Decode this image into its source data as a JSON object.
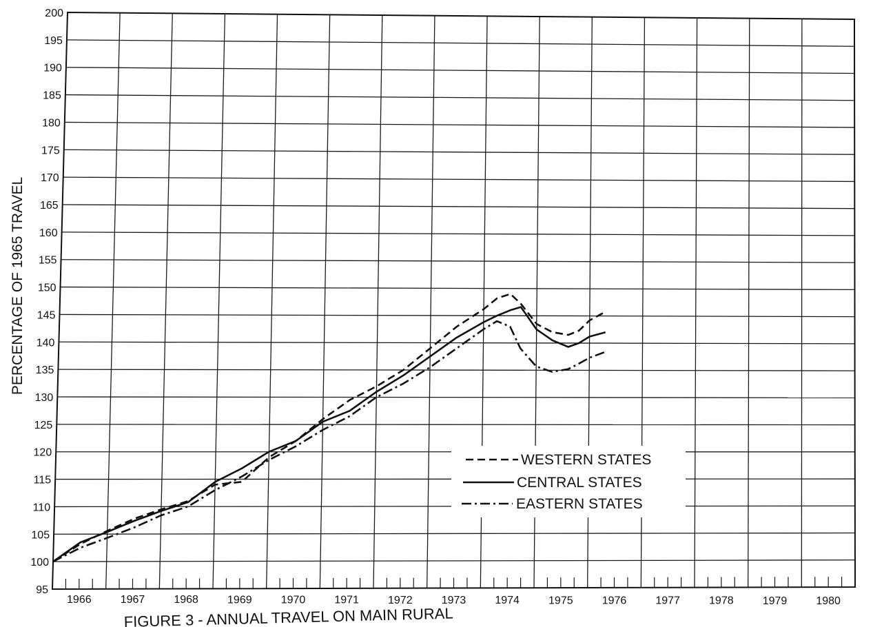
{
  "chart_data": {
    "type": "line",
    "title": "FIGURE 3 - ANNUAL TRAVEL ON MAIN RURAL",
    "xlabel": "",
    "ylabel": "PERCENTAGE OF 1965 TRAVEL",
    "ylim": [
      95,
      200
    ],
    "yticks": [
      "95",
      "100",
      "105",
      "110",
      "115",
      "120",
      "125",
      "130",
      "135",
      "140",
      "145",
      "150",
      "155",
      "160",
      "165",
      "170",
      "175",
      "180",
      "185",
      "190",
      "195",
      "200"
    ],
    "categories": [
      "1966",
      "1967",
      "1968",
      "1969",
      "1970",
      "1971",
      "1972",
      "1973",
      "1974",
      "1975",
      "1976",
      "1977",
      "1978",
      "1979",
      "1980"
    ],
    "grid": true,
    "legend_position": "center-right",
    "series": [
      {
        "name": "WESTERN STATES",
        "style": "dashed",
        "color": "#111111",
        "x": [
          1965.0,
          1965.5,
          1966.0,
          1966.5,
          1967.0,
          1967.5,
          1968.0,
          1968.5,
          1969.0,
          1969.5,
          1970.0,
          1970.5,
          1971.0,
          1971.5,
          1972.0,
          1972.5,
          1973.0,
          1973.25,
          1973.5,
          1973.7,
          1974.0,
          1974.3,
          1974.6,
          1974.8,
          1975.0,
          1975.3
        ],
        "values": [
          100,
          103.2,
          105.6,
          107.8,
          109.5,
          111,
          114,
          114.5,
          119,
          122,
          126,
          129.5,
          132,
          135,
          139,
          143,
          146.2,
          148.2,
          149,
          147.2,
          143.5,
          142,
          141.5,
          142.3,
          144.2,
          145.8
        ]
      },
      {
        "name": "CENTRAL STATES",
        "style": "solid",
        "color": "#111111",
        "x": [
          1965.0,
          1965.5,
          1966.0,
          1966.5,
          1967.0,
          1967.5,
          1968.0,
          1968.5,
          1969.0,
          1969.5,
          1970.0,
          1970.5,
          1971.0,
          1971.5,
          1972.0,
          1972.5,
          1973.0,
          1973.25,
          1973.5,
          1973.7,
          1974.0,
          1974.3,
          1974.6,
          1974.8,
          1975.0,
          1975.3
        ],
        "values": [
          100,
          103.5,
          105.4,
          107.4,
          109.2,
          110.8,
          114.5,
          117,
          120,
          122,
          125.5,
          127.5,
          131,
          134,
          137.5,
          141,
          143.8,
          145,
          146,
          146.6,
          142.5,
          140.5,
          139.3,
          140,
          141.2,
          142
        ],
        "labels_hidden": true
      },
      {
        "name": "EASTERN STATES",
        "style": "dash-dot",
        "color": "#111111",
        "x": [
          1965.0,
          1965.5,
          1966.0,
          1966.5,
          1967.0,
          1967.5,
          1968.0,
          1968.5,
          1969.0,
          1969.5,
          1970.0,
          1970.5,
          1971.0,
          1971.5,
          1972.0,
          1972.5,
          1973.0,
          1973.25,
          1973.5,
          1973.7,
          1974.0,
          1974.3,
          1974.6,
          1974.8,
          1975.0,
          1975.3
        ],
        "values": [
          100,
          102.5,
          104.3,
          106.2,
          108.4,
          110,
          113,
          115.5,
          118.5,
          121,
          124,
          126.5,
          130,
          132.5,
          135.5,
          139,
          142.5,
          144,
          143,
          139,
          135.7,
          134.7,
          135.2,
          136.2,
          137.3,
          138.4
        ]
      }
    ]
  }
}
